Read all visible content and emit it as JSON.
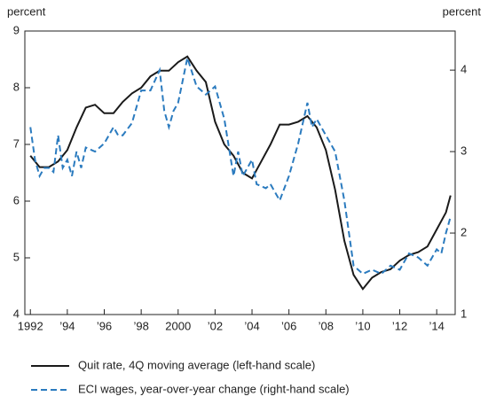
{
  "chart_data": {
    "type": "line",
    "left_unit": "percent",
    "right_unit": "percent",
    "xlim": [
      1991.7,
      2015
    ],
    "xticks": [
      1992,
      {
        "value": 1994,
        "label": "’94"
      },
      {
        "value": 1996,
        "label": "’96"
      },
      {
        "value": 1998,
        "label": "’98"
      },
      2000,
      {
        "value": 2002,
        "label": "’02"
      },
      {
        "value": 2004,
        "label": "’04"
      },
      {
        "value": 2006,
        "label": "’06"
      },
      {
        "value": 2008,
        "label": "’08"
      },
      {
        "value": 2010,
        "label": "’10"
      },
      {
        "value": 2012,
        "label": "’12"
      },
      {
        "value": 2014,
        "label": "’14"
      }
    ],
    "ylim": [
      4,
      9
    ],
    "yticks": [
      4,
      5,
      6,
      7,
      8,
      9
    ],
    "y2lim": [
      1,
      4.48
    ],
    "y2ticks": [
      1,
      2,
      3,
      4
    ],
    "series": [
      {
        "name": "Quit rate, 4Q moving average (left-hand scale)",
        "color": "#1a1a1a",
        "dash": false,
        "x": [
          1992,
          1992.5,
          1993,
          1993.5,
          1994,
          1994.5,
          1995,
          1995.5,
          1996,
          1996.5,
          1997,
          1997.5,
          1998,
          1998.5,
          1999,
          1999.5,
          2000,
          2000.5,
          2001,
          2001.5,
          2002,
          2002.5,
          2003,
          2003.5,
          2004,
          2004.5,
          2005,
          2005.5,
          2006,
          2006.5,
          2007,
          2007.5,
          2008,
          2008.5,
          2009,
          2009.5,
          2010,
          2010.5,
          2011,
          2011.5,
          2012,
          2012.5,
          2013,
          2013.5,
          2014,
          2014.5,
          2014.75
        ],
        "values": [
          6.8,
          6.6,
          6.6,
          6.7,
          6.9,
          7.3,
          7.65,
          7.7,
          7.55,
          7.55,
          7.75,
          7.9,
          8.0,
          8.2,
          8.3,
          8.3,
          8.45,
          8.55,
          8.3,
          8.1,
          7.4,
          7.0,
          6.8,
          6.5,
          6.4,
          6.7,
          7.0,
          7.35,
          7.35,
          7.4,
          7.5,
          7.3,
          6.9,
          6.2,
          5.3,
          4.7,
          4.45,
          4.65,
          4.75,
          4.8,
          4.95,
          5.05,
          5.1,
          5.2,
          5.5,
          5.8,
          6.1
        ]
      },
      {
        "name": "ECI wages, year-over-year change (right-hand scale)",
        "color": "#2b7bbf",
        "dash": true,
        "axis": "y2",
        "x": [
          1992,
          1992.25,
          1992.5,
          1992.75,
          1993,
          1993.25,
          1993.5,
          1993.75,
          1994,
          1994.25,
          1994.5,
          1994.75,
          1995,
          1995.5,
          1996,
          1996.25,
          1996.5,
          1996.75,
          1997,
          1997.5,
          1998,
          1998.5,
          1999,
          1999.25,
          1999.5,
          1999.75,
          2000,
          2000.5,
          2001,
          2001.5,
          2002,
          2002.5,
          2003,
          2003.25,
          2003.5,
          2004,
          2004.25,
          2004.75,
          2005,
          2005.5,
          2006,
          2006.5,
          2007,
          2007.25,
          2007.5,
          2008,
          2008.5,
          2009,
          2009.5,
          2010,
          2010.5,
          2011,
          2011.5,
          2012,
          2012.5,
          2013,
          2013.5,
          2014,
          2014.25,
          2014.5,
          2014.75
        ],
        "values": [
          3.3,
          2.9,
          2.7,
          2.8,
          2.8,
          2.75,
          3.2,
          2.8,
          2.9,
          2.7,
          3.0,
          2.8,
          3.05,
          3.0,
          3.1,
          3.2,
          3.3,
          3.2,
          3.2,
          3.35,
          3.75,
          3.75,
          4.0,
          3.5,
          3.3,
          3.5,
          3.6,
          4.15,
          3.8,
          3.7,
          3.8,
          3.4,
          2.7,
          3.0,
          2.7,
          2.9,
          2.6,
          2.55,
          2.6,
          2.4,
          2.7,
          3.1,
          3.6,
          3.3,
          3.4,
          3.2,
          3.0,
          2.4,
          1.6,
          1.5,
          1.55,
          1.5,
          1.6,
          1.55,
          1.75,
          1.7,
          1.6,
          1.8,
          1.75,
          2.0,
          2.2
        ]
      }
    ]
  }
}
